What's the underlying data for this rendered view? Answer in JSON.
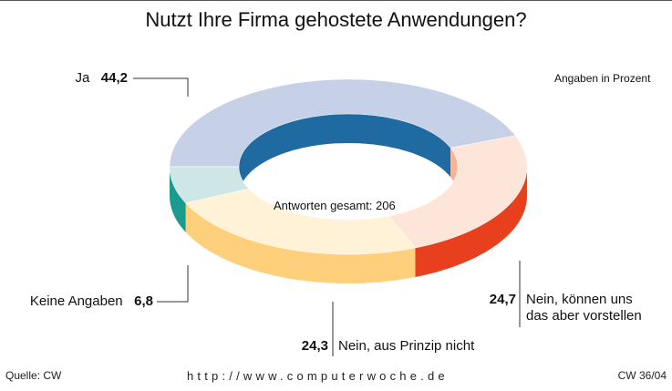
{
  "chart_data": {
    "type": "donut3d",
    "title": "Nutzt Ihre Firma gehostete Anwendungen?",
    "subtitle": "Angaben in Prozent",
    "center_label": "Antworten gesamt: 206",
    "categories": [
      "Ja",
      "Nein, können uns das aber vorstellen",
      "Nein, aus Prinzip nicht",
      "Keine Angaben"
    ],
    "values": [
      44.2,
      24.7,
      24.3,
      6.8
    ],
    "value_labels": [
      "44,2",
      "24,7",
      "24,3",
      "6,8"
    ],
    "colors": [
      "#c6d0e7",
      "#fde5d9",
      "#fff2d6",
      "#cfe6e6"
    ],
    "side_colors": [
      "#9cb0d3",
      "#e8401f",
      "#ffd07c",
      "#1b9a8e"
    ],
    "inner_colors": [
      "#1f6aa0",
      "#f8b595",
      "#fbe3b0",
      "#8cc9c4"
    ],
    "source": "Quelle: CW",
    "url": "http://www.computerwoche.de",
    "issue": "CW 36/04"
  }
}
